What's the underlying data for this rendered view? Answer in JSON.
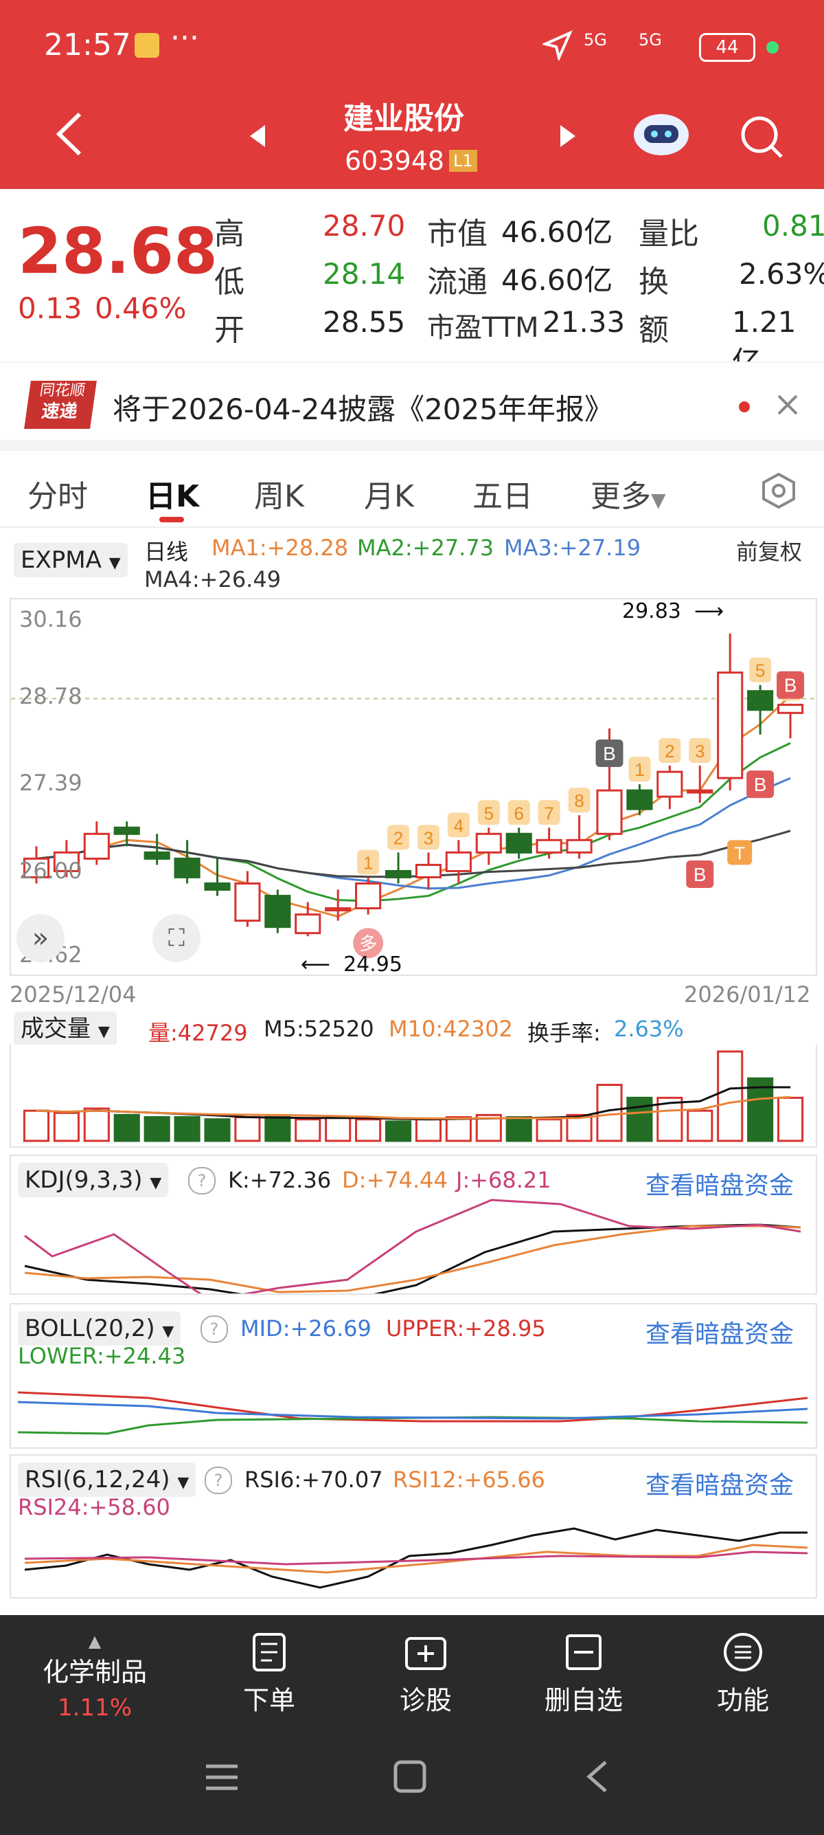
{
  "status": {
    "time": "21:57",
    "battery": "44",
    "signal1": "5G",
    "signal2": "5G"
  },
  "header": {
    "stock_name": "建业股份",
    "stock_code": "603948",
    "level_badge": "L1"
  },
  "quote": {
    "price": "28.68",
    "change": "0.13",
    "change_pct": "0.46%",
    "high_label": "高",
    "high": "28.70",
    "low_label": "低",
    "low": "28.14",
    "open_label": "开",
    "open": "28.55",
    "mcap_label": "市值",
    "mcap": "46.60亿",
    "float_label": "流通",
    "float": "46.60亿",
    "pe_label": "市盈TTM",
    "pe": "21.33",
    "vol_ratio_label": "量比",
    "vol_ratio": "0.81",
    "turnover_label": "换",
    "turnover": "2.63%",
    "amount_label": "额",
    "amount": "1.21亿"
  },
  "notice": {
    "logo_top": "同花顺",
    "logo_bottom": "速递",
    "text": "将于2026-04-24披露《2025年年报》"
  },
  "tabs": [
    "分时",
    "日K",
    "周K",
    "月K",
    "五日",
    "更多"
  ],
  "active_tab": 1,
  "kline": {
    "indicator": "EXPMA",
    "period": "日线",
    "ma1": "MA1:+28.28",
    "ma2": "MA2:+27.73",
    "ma3": "MA3:+27.19",
    "ma4": "MA4:+26.49",
    "adjust": "前复权",
    "yticks": [
      "30.16",
      "28.78",
      "27.39",
      "26.00",
      "24.62"
    ],
    "high_mark": "29.83",
    "low_mark": "24.95",
    "date_start": "2025/12/04",
    "date_end": "2026/01/12",
    "signal_numbers": [
      "1",
      "2",
      "3",
      "4",
      "5",
      "6",
      "7",
      "8",
      "1",
      "2",
      "3",
      "5",
      "6"
    ],
    "signal_b": "B",
    "signal_t": "T",
    "signal_duo": "多"
  },
  "volume": {
    "label": "成交量",
    "vol": "量:42729",
    "m5": "M5:52520",
    "m10": "M10:42302",
    "turnover_label": "换手率:",
    "turnover": "2.63%"
  },
  "kdj": {
    "label": "KDJ(9,3,3)",
    "k": "K:+72.36",
    "d": "D:+74.44",
    "j": "J:+68.21",
    "link": "查看暗盘资金"
  },
  "boll": {
    "label": "BOLL(20,2)",
    "mid": "MID:+26.69",
    "upper": "UPPER:+28.95",
    "lower": "LOWER:+24.43",
    "link": "查看暗盘资金"
  },
  "rsi": {
    "label": "RSI(6,12,24)",
    "rsi6": "RSI6:+70.07",
    "rsi12": "RSI12:+65.66",
    "rsi24": "RSI24:+58.60",
    "link": "查看暗盘资金"
  },
  "footer": {
    "sector": "化学制品",
    "sector_pct": "1.11%",
    "order": "下单",
    "diagnose": "诊股",
    "remove": "删自选",
    "functions": "功能"
  },
  "chart_data": {
    "type": "candlestick",
    "x_range": [
      "2025/12/04",
      "2026/01/12"
    ],
    "ylim": [
      24.62,
      30.16
    ],
    "candles": [
      {
        "o": 25.9,
        "c": 26.2,
        "h": 26.4,
        "l": 25.8
      },
      {
        "o": 26.0,
        "c": 26.3,
        "h": 26.5,
        "l": 25.9
      },
      {
        "o": 26.2,
        "c": 26.6,
        "h": 26.8,
        "l": 26.1
      },
      {
        "o": 26.7,
        "c": 26.6,
        "h": 26.8,
        "l": 26.4
      },
      {
        "o": 26.3,
        "c": 26.2,
        "h": 26.6,
        "l": 26.1
      },
      {
        "o": 26.2,
        "c": 25.9,
        "h": 26.5,
        "l": 25.8
      },
      {
        "o": 25.8,
        "c": 25.7,
        "h": 26.2,
        "l": 25.6
      },
      {
        "o": 25.2,
        "c": 25.8,
        "h": 26.0,
        "l": 25.1
      },
      {
        "o": 25.6,
        "c": 25.1,
        "h": 25.7,
        "l": 25.0
      },
      {
        "o": 25.0,
        "c": 25.3,
        "h": 25.5,
        "l": 24.95
      },
      {
        "o": 25.4,
        "c": 25.4,
        "h": 25.7,
        "l": 25.2
      },
      {
        "o": 25.4,
        "c": 25.8,
        "h": 25.9,
        "l": 25.3
      },
      {
        "o": 26.0,
        "c": 25.9,
        "h": 26.3,
        "l": 25.8
      },
      {
        "o": 25.9,
        "c": 26.1,
        "h": 26.3,
        "l": 25.7
      },
      {
        "o": 26.0,
        "c": 26.3,
        "h": 26.5,
        "l": 25.8
      },
      {
        "o": 26.3,
        "c": 26.6,
        "h": 26.7,
        "l": 26.1
      },
      {
        "o": 26.6,
        "c": 26.3,
        "h": 26.7,
        "l": 26.2
      },
      {
        "o": 26.3,
        "c": 26.5,
        "h": 26.7,
        "l": 26.2
      },
      {
        "o": 26.3,
        "c": 26.5,
        "h": 26.9,
        "l": 26.2
      },
      {
        "o": 26.6,
        "c": 27.3,
        "h": 28.3,
        "l": 26.5
      },
      {
        "o": 27.3,
        "c": 27.0,
        "h": 27.4,
        "l": 26.9
      },
      {
        "o": 27.2,
        "c": 27.6,
        "h": 27.7,
        "l": 27.0
      },
      {
        "o": 27.3,
        "c": 27.3,
        "h": 27.7,
        "l": 27.1
      },
      {
        "o": 27.5,
        "c": 29.2,
        "h": 29.83,
        "l": 27.3
      },
      {
        "o": 28.9,
        "c": 28.6,
        "h": 29.0,
        "l": 28.2
      },
      {
        "o": 28.55,
        "c": 28.68,
        "h": 28.7,
        "l": 28.14
      }
    ],
    "volume": [
      28,
      26,
      30,
      24,
      22,
      22,
      20,
      22,
      22,
      20,
      22,
      20,
      18,
      20,
      22,
      24,
      22,
      20,
      24,
      52,
      40,
      40,
      28,
      83,
      58,
      40
    ],
    "ma_lines": [
      "MA1",
      "MA2",
      "MA3",
      "MA4"
    ]
  },
  "colors": {
    "up": "#d7322e",
    "down": "#246d24",
    "header_bg": "#e03a3a",
    "ma1": "#e8843a",
    "ma2": "#2f9a2f",
    "ma3": "#4a7fd0",
    "ma4": "#444444"
  }
}
